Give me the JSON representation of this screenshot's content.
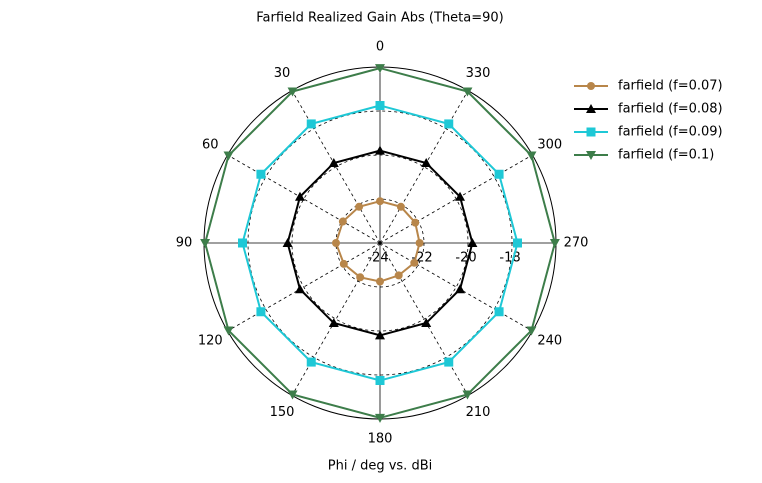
{
  "chart_data": {
    "type": "polar",
    "title": "Farfield Realized Gain Abs (Theta=90)",
    "x_label": "Phi / deg vs. dBi",
    "theta": [
      0,
      30,
      60,
      90,
      120,
      150,
      180,
      210,
      240,
      270,
      300,
      330
    ],
    "theta_ticks": [
      0,
      30,
      60,
      90,
      120,
      150,
      180,
      210,
      240,
      270,
      300,
      330
    ],
    "rlim": [
      -24,
      -16
    ],
    "rticks": [
      -24,
      -22,
      -20,
      -18
    ],
    "legend": "upper right",
    "series": [
      {
        "name": "farfield (f=0.07)",
        "color": "#b8864a",
        "marker": "circle",
        "values": [
          -22.1,
          -22.1,
          -22.05,
          -22.0,
          -22.1,
          -22.2,
          -22.25,
          -22.3,
          -22.2,
          -22.2,
          -22.15,
          -22.1
        ]
      },
      {
        "name": "farfield (f=0.08)",
        "color": "#000000",
        "marker": "triangle-up",
        "values": [
          -19.8,
          -19.8,
          -19.8,
          -19.8,
          -19.8,
          -19.8,
          -19.8,
          -19.8,
          -19.8,
          -19.8,
          -19.8,
          -19.8
        ]
      },
      {
        "name": "farfield (f=0.09)",
        "color": "#1ec8d6",
        "marker": "square",
        "values": [
          -17.75,
          -17.75,
          -17.75,
          -17.75,
          -17.75,
          -17.75,
          -17.75,
          -17.75,
          -17.75,
          -17.75,
          -17.75,
          -17.75
        ]
      },
      {
        "name": "farfield (f=0.1)",
        "color": "#3d7d4a",
        "marker": "triangle-down",
        "values": [
          -16.05,
          -16.05,
          -16.05,
          -16.05,
          -16.05,
          -16.05,
          -16.05,
          -16.05,
          -16.05,
          -16.05,
          -16.05,
          -16.05
        ]
      }
    ]
  }
}
